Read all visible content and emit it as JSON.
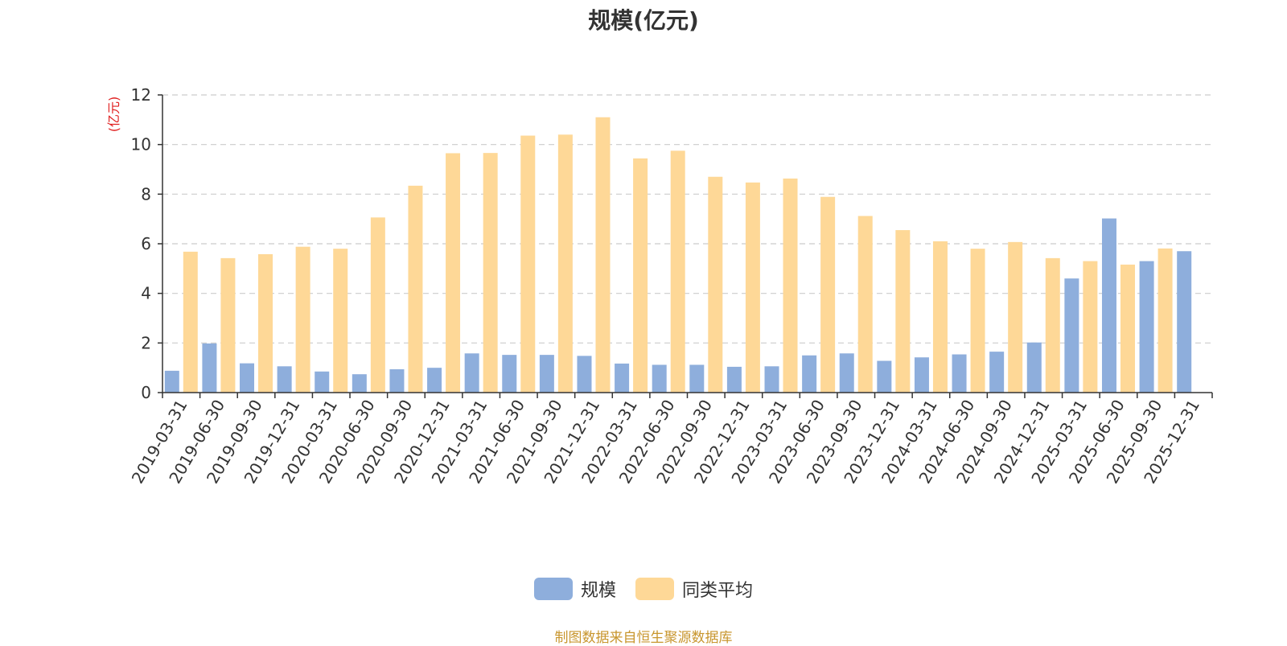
{
  "colors": {
    "series_1": "#8eaedc",
    "series_2": "#fed897",
    "ylabel": "#e02020",
    "source": "#c8962e",
    "grid": "#cccccc",
    "axis": "#333333"
  },
  "chart_data": {
    "type": "bar",
    "title": "规模(亿元)",
    "ylabel": "(亿元)",
    "xlabel": "",
    "ylim": [
      0,
      12
    ],
    "yticks": [
      0,
      2,
      4,
      6,
      8,
      10,
      12
    ],
    "grid": true,
    "legend_position": "bottom",
    "categories": [
      "2019-03-31",
      "2019-06-30",
      "2019-09-30",
      "2019-12-31",
      "2020-03-31",
      "2020-06-30",
      "2020-09-30",
      "2020-12-31",
      "2021-03-31",
      "2021-06-30",
      "2021-09-30",
      "2021-12-31",
      "2022-03-31",
      "2022-06-30",
      "2022-09-30",
      "2022-12-31",
      "2023-03-31",
      "2023-06-30",
      "2023-09-30",
      "2023-12-31",
      "2024-03-31",
      "2024-06-30",
      "2024-09-30",
      "2024-12-31",
      "2025-03-31",
      "2025-06-30",
      "2025-09-30",
      "2025-12-31"
    ],
    "series": [
      {
        "name": "规模",
        "values": [
          0.88,
          1.98,
          1.18,
          1.06,
          0.85,
          0.74,
          0.94,
          1.0,
          1.58,
          1.52,
          1.52,
          1.48,
          1.17,
          1.12,
          1.12,
          1.04,
          1.06,
          1.5,
          1.58,
          1.28,
          1.42,
          1.54,
          1.65,
          2.02,
          4.6,
          7.02,
          5.3,
          5.7
        ]
      },
      {
        "name": "同类平均",
        "values": [
          5.68,
          5.42,
          5.58,
          5.88,
          5.8,
          7.06,
          8.34,
          9.65,
          9.66,
          10.36,
          10.4,
          11.1,
          9.44,
          9.75,
          8.7,
          8.47,
          8.63,
          7.89,
          7.12,
          6.55,
          6.1,
          5.8,
          6.07,
          5.42,
          5.3,
          5.16,
          5.81,
          null
        ]
      }
    ]
  },
  "source_note": "制图数据来自恒生聚源数据库"
}
